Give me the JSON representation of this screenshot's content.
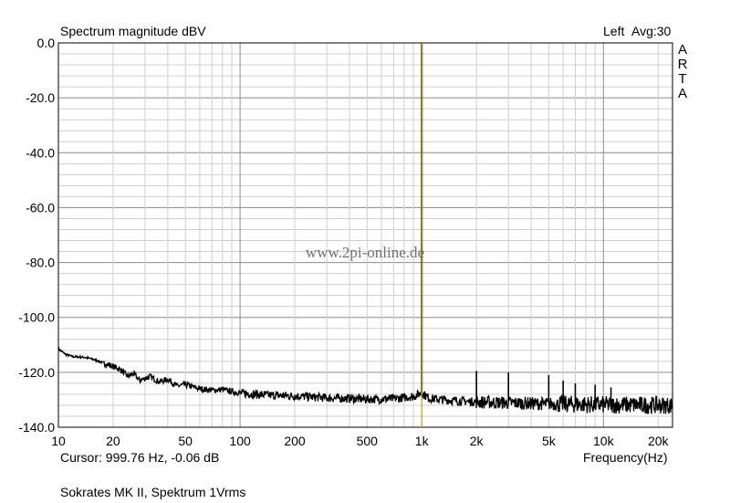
{
  "chart_data": {
    "type": "line",
    "title": "Spectrum magnitude dBV",
    "channel_label": "Left",
    "avg_label": "Avg:30",
    "brand_letters": [
      "A",
      "R",
      "T",
      "A"
    ],
    "watermark": "www.2pi-online.de",
    "xlabel": "Frequency(Hz)",
    "ylabel": "",
    "x_scale": "log",
    "xlim": [
      10,
      24000
    ],
    "ylim": [
      -140,
      0
    ],
    "grid": true,
    "x_ticks": [
      {
        "value": 10,
        "label": "10"
      },
      {
        "value": 20,
        "label": "20"
      },
      {
        "value": 50,
        "label": "50"
      },
      {
        "value": 100,
        "label": "100"
      },
      {
        "value": 200,
        "label": "200"
      },
      {
        "value": 500,
        "label": "500"
      },
      {
        "value": 1000,
        "label": "1k"
      },
      {
        "value": 2000,
        "label": "2k"
      },
      {
        "value": 5000,
        "label": "5k"
      },
      {
        "value": 10000,
        "label": "10k"
      },
      {
        "value": 20000,
        "label": "20k"
      }
    ],
    "y_ticks": [
      {
        "value": 0,
        "label": "0.0"
      },
      {
        "value": -20,
        "label": "-20.0"
      },
      {
        "value": -40,
        "label": "-40.0"
      },
      {
        "value": -60,
        "label": "-60.0"
      },
      {
        "value": -80,
        "label": "-80.0"
      },
      {
        "value": -100,
        "label": "-100.0"
      },
      {
        "value": -120,
        "label": "-120.0"
      },
      {
        "value": -140,
        "label": "-140.0"
      }
    ],
    "cursor": {
      "frequency_hz": 999.76,
      "level_db": -0.06,
      "color": "#c8b400"
    },
    "cursor_text": "Cursor: 999.76 Hz, -0.06 dB",
    "caption": "Sokrates MK II, Spektrum 1Vrms",
    "series": [
      {
        "color": "#000000",
        "noise_floor": [
          {
            "x": 10,
            "y": -111.5
          },
          {
            "x": 11,
            "y": -113.5
          },
          {
            "x": 12,
            "y": -114.3
          },
          {
            "x": 14,
            "y": -114.5
          },
          {
            "x": 16,
            "y": -115.5
          },
          {
            "x": 18,
            "y": -116.8
          },
          {
            "x": 20,
            "y": -117.8
          },
          {
            "x": 22,
            "y": -119
          },
          {
            "x": 24,
            "y": -121.5
          },
          {
            "x": 26,
            "y": -120.5
          },
          {
            "x": 28,
            "y": -123
          },
          {
            "x": 32,
            "y": -121.5
          },
          {
            "x": 36,
            "y": -123.5
          },
          {
            "x": 40,
            "y": -122.5
          },
          {
            "x": 45,
            "y": -125
          },
          {
            "x": 50,
            "y": -124.5
          },
          {
            "x": 60,
            "y": -126
          },
          {
            "x": 70,
            "y": -126.5
          },
          {
            "x": 80,
            "y": -126.3
          },
          {
            "x": 90,
            "y": -127
          },
          {
            "x": 100,
            "y": -127.5
          },
          {
            "x": 130,
            "y": -128.2
          },
          {
            "x": 200,
            "y": -128.6
          },
          {
            "x": 300,
            "y": -129.3
          },
          {
            "x": 500,
            "y": -129.8
          },
          {
            "x": 700,
            "y": -129.6
          },
          {
            "x": 900,
            "y": -128.8
          },
          {
            "x": 1000,
            "y": -127.5
          },
          {
            "x": 1100,
            "y": -129.5
          },
          {
            "x": 1500,
            "y": -130.3
          },
          {
            "x": 2000,
            "y": -130.8
          },
          {
            "x": 5000,
            "y": -131.5
          },
          {
            "x": 10000,
            "y": -131.8
          },
          {
            "x": 24000,
            "y": -132
          }
        ],
        "peaks": [
          {
            "x": 999.76,
            "y": -0.06
          },
          {
            "x": 2000,
            "y": -119.5
          },
          {
            "x": 3000,
            "y": -120
          },
          {
            "x": 5000,
            "y": -121
          },
          {
            "x": 6000,
            "y": -123
          },
          {
            "x": 7000,
            "y": -124
          },
          {
            "x": 9000,
            "y": -124.5
          },
          {
            "x": 11000,
            "y": -125.5
          }
        ]
      }
    ]
  }
}
